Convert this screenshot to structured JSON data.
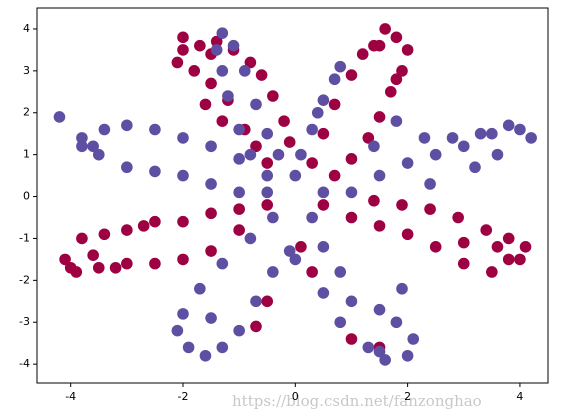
{
  "chart_data": {
    "type": "scatter",
    "xlim": [
      -4.6,
      4.5
    ],
    "ylim": [
      -4.45,
      4.5
    ],
    "xticks": [
      -4,
      -2,
      0,
      2,
      4
    ],
    "yticks": [
      -4,
      -3,
      -2,
      -1,
      0,
      1,
      2,
      3,
      4
    ],
    "series": [
      {
        "color": "#9e0142",
        "x": [
          -0.5,
          -0.7,
          -0.9,
          -1.2,
          -1.5,
          -1.8,
          -2.1,
          -2.0,
          -1.7,
          -1.4,
          -1.1,
          -0.8,
          -0.6,
          -0.4,
          -0.2,
          -0.1,
          -2.0,
          -1.6,
          -1.3,
          -1.5,
          0.3,
          0.5,
          0.7,
          1.0,
          1.2,
          1.5,
          1.8,
          2.0,
          1.9,
          1.7,
          1.5,
          1.3,
          1.0,
          0.7,
          1.4,
          1.6,
          1.8,
          -0.5,
          -1.0,
          -1.5,
          -2.0,
          -2.5,
          -3.0,
          -3.4,
          -3.8,
          -4.1,
          -3.9,
          -3.5,
          -3.0,
          -2.5,
          -2.0,
          -1.5,
          -1.0,
          -3.2,
          -2.7,
          -3.6,
          -4.0,
          0.5,
          1.0,
          1.5,
          2.0,
          2.5,
          3.0,
          3.5,
          3.8,
          4.1,
          3.8,
          3.4,
          2.9,
          2.4,
          1.9,
          1.4,
          3.0,
          3.6,
          4.0,
          0.1,
          -0.5,
          -0.7,
          1.0,
          1.5,
          0.3
        ],
        "y": [
          0.8,
          1.2,
          1.6,
          2.3,
          2.7,
          3.0,
          3.2,
          3.5,
          3.6,
          3.7,
          3.5,
          3.2,
          2.9,
          2.4,
          1.8,
          1.3,
          3.8,
          2.2,
          1.8,
          3.4,
          0.8,
          1.5,
          2.2,
          2.9,
          3.4,
          3.6,
          3.8,
          3.5,
          3.0,
          2.5,
          1.9,
          1.4,
          0.9,
          0.5,
          3.6,
          4.0,
          2.8,
          -0.2,
          -0.3,
          -0.4,
          -0.6,
          -0.6,
          -0.8,
          -0.9,
          -1.0,
          -1.5,
          -1.8,
          -1.7,
          -1.6,
          -1.6,
          -1.5,
          -1.3,
          -0.8,
          -1.7,
          -0.7,
          -1.4,
          -1.7,
          -0.2,
          -0.5,
          -0.7,
          -0.9,
          -1.2,
          -1.6,
          -1.8,
          -1.5,
          -1.2,
          -1.0,
          -0.8,
          -0.5,
          -0.3,
          -0.2,
          -0.1,
          -1.1,
          -1.2,
          -1.5,
          -1.2,
          -2.5,
          -3.1,
          -3.4,
          -3.6,
          -1.8
        ]
      },
      {
        "color": "#5e4fa2",
        "x": [
          -0.5,
          -0.8,
          -1.0,
          -1.2,
          -1.3,
          -1.4,
          -1.3,
          -1.1,
          -0.9,
          -0.7,
          -0.5,
          -0.3,
          0.0,
          0.1,
          0.3,
          0.5,
          0.7,
          0.8,
          0.4,
          -0.5,
          -1.0,
          -1.5,
          -2.0,
          -2.5,
          -3.0,
          -3.5,
          -3.8,
          -4.2,
          -3.8,
          -3.4,
          -3.0,
          -2.5,
          -2.0,
          -1.5,
          -1.0,
          -3.6,
          0.5,
          1.0,
          1.5,
          2.0,
          2.5,
          3.0,
          3.5,
          4.0,
          4.2,
          3.8,
          3.3,
          2.8,
          2.3,
          1.8,
          1.4,
          2.4,
          3.6,
          3.2,
          -0.4,
          -0.8,
          -1.3,
          -1.7,
          -2.0,
          -2.1,
          -1.9,
          -1.6,
          -1.3,
          -1.0,
          -0.7,
          -0.4,
          -0.1,
          -1.5,
          0.3,
          0.5,
          0.8,
          1.0,
          1.5,
          1.8,
          2.1,
          2.0,
          1.6,
          1.3,
          0.8,
          0.5,
          0.0,
          1.9,
          1.5
        ],
        "y": [
          0.5,
          1.0,
          1.6,
          2.4,
          3.0,
          3.5,
          3.9,
          3.6,
          3.0,
          2.2,
          1.5,
          1.0,
          0.5,
          1.0,
          1.6,
          2.3,
          2.8,
          3.1,
          2.0,
          0.1,
          0.1,
          0.3,
          0.5,
          0.6,
          0.7,
          1.0,
          1.2,
          1.9,
          1.4,
          1.6,
          1.7,
          1.6,
          1.4,
          1.2,
          0.9,
          1.2,
          0.1,
          0.1,
          0.5,
          0.8,
          1.0,
          1.2,
          1.5,
          1.6,
          1.4,
          1.7,
          1.5,
          1.4,
          1.4,
          1.8,
          1.2,
          0.3,
          1.0,
          0.7,
          -0.5,
          -1.0,
          -1.6,
          -2.2,
          -2.8,
          -3.2,
          -3.6,
          -3.8,
          -3.6,
          -3.2,
          -2.5,
          -1.8,
          -1.3,
          -2.9,
          -0.5,
          -1.2,
          -1.8,
          -2.5,
          -2.7,
          -3.0,
          -3.4,
          -3.8,
          -3.9,
          -3.6,
          -3.0,
          -2.3,
          -1.5,
          -2.2,
          -3.7
        ]
      }
    ]
  },
  "watermark": "https://blog.csdn.net/fanzonghao"
}
